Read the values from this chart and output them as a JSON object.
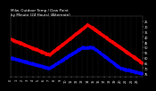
{
  "title": "Milw. Outdoor Temp / Dew Point\nby Minute (24 Hours) (Alternate)",
  "bg_color": "#000000",
  "text_color": "#ffffff",
  "grid_color": "#555555",
  "temp_color": "#ff0000",
  "dew_color": "#0000ff",
  "ylim": [
    22,
    80
  ],
  "xlim": [
    0,
    1439
  ],
  "ytick_positions": [
    25,
    30,
    35,
    40,
    45,
    50,
    55,
    60,
    65,
    70,
    75
  ],
  "ytick_labels": [
    "75",
    "70",
    "65",
    "60",
    "55",
    "50",
    "45",
    "40",
    "35",
    "30",
    "25"
  ],
  "xtick_positions": [
    0,
    60,
    120,
    180,
    240,
    300,
    360,
    420,
    480,
    540,
    600,
    660,
    720,
    780,
    840,
    900,
    960,
    1020,
    1080,
    1140,
    1200,
    1260,
    1320,
    1380
  ],
  "xtick_labels_top": [
    "0",
    "1",
    "2",
    "3",
    "4",
    "5",
    "6",
    "7",
    "8",
    "9",
    "10",
    "11",
    "12",
    "13",
    "14",
    "15",
    "16",
    "17",
    "18",
    "19",
    "20",
    "21",
    "22",
    "23"
  ],
  "xtick_labels_bot": [
    "0",
    "11",
    "23",
    "5",
    "17",
    "29",
    "41",
    "53",
    "5",
    "17",
    "29",
    "41",
    "53",
    "5",
    "17",
    "29",
    "41",
    "53",
    "5",
    "17",
    "29",
    "41",
    "53",
    "5"
  ],
  "marker_size": 1.0,
  "title_fontsize": 3.0,
  "tick_fontsize": 2.5
}
